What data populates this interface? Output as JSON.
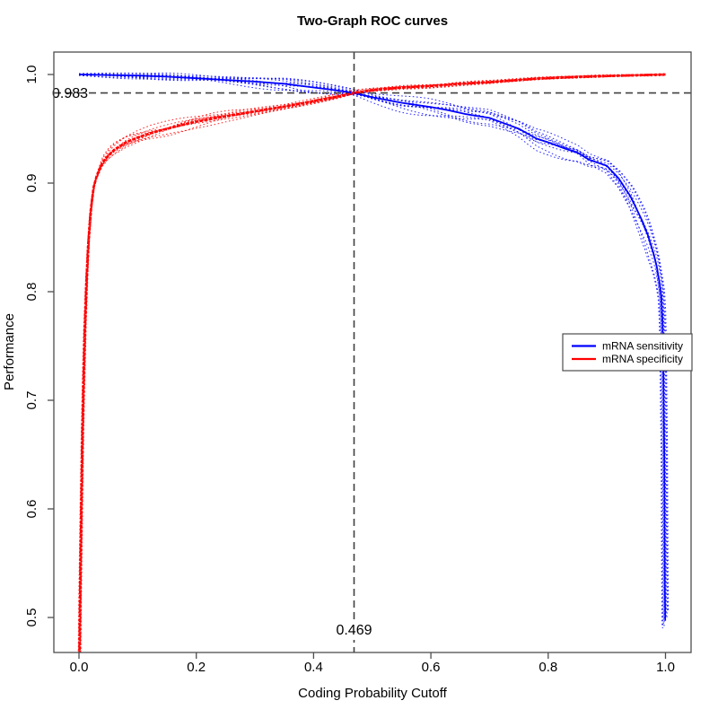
{
  "page": {
    "background": "#ffffff"
  },
  "chart_data": {
    "type": "line",
    "title": "Two-Graph ROC curves",
    "xlabel": "Coding Probability Cutoff",
    "ylabel": "Performance",
    "xlim": [
      -0.04,
      1.04
    ],
    "ylim": [
      0.468,
      1.02
    ],
    "grid": false,
    "legend_position": "right-middle",
    "x_ticks": {
      "values": [
        0.0,
        0.2,
        0.4,
        0.6,
        0.8,
        1.0
      ],
      "labels": [
        "0.0",
        "0.2",
        "0.4",
        "0.6",
        "0.8",
        "1.0"
      ]
    },
    "y_ticks": {
      "values": [
        0.5,
        0.6,
        0.7,
        0.8,
        0.9,
        1.0
      ],
      "labels": [
        "0.5",
        "0.6",
        "0.7",
        "0.8",
        "0.9",
        "1.0"
      ]
    },
    "series": [
      {
        "name": "mRNA sensitivity",
        "color": "#0000FF",
        "style": "solid",
        "points": [
          [
            0.0,
            1.0
          ],
          [
            0.05,
            0.9995
          ],
          [
            0.1,
            0.999
          ],
          [
            0.15,
            0.998
          ],
          [
            0.2,
            0.9965
          ],
          [
            0.25,
            0.995
          ],
          [
            0.3,
            0.9935
          ],
          [
            0.35,
            0.9915
          ],
          [
            0.4,
            0.988
          ],
          [
            0.43,
            0.986
          ],
          [
            0.469,
            0.983
          ],
          [
            0.5,
            0.979
          ],
          [
            0.55,
            0.974
          ],
          [
            0.6,
            0.97
          ],
          [
            0.63,
            0.967
          ],
          [
            0.66,
            0.9635
          ],
          [
            0.7,
            0.96
          ],
          [
            0.72,
            0.956
          ],
          [
            0.75,
            0.95
          ],
          [
            0.78,
            0.941
          ],
          [
            0.8,
            0.9375
          ],
          [
            0.83,
            0.9315
          ],
          [
            0.85,
            0.928
          ],
          [
            0.87,
            0.9215
          ],
          [
            0.9,
            0.916
          ],
          [
            0.92,
            0.9045
          ],
          [
            0.94,
            0.888
          ],
          [
            0.95,
            0.877
          ],
          [
            0.96,
            0.8655
          ],
          [
            0.97,
            0.852
          ],
          [
            0.98,
            0.8345
          ],
          [
            0.985,
            0.8235
          ],
          [
            0.99,
            0.8075
          ],
          [
            0.993,
            0.795
          ],
          [
            0.995,
            0.772
          ],
          [
            0.996,
            0.7435
          ],
          [
            0.997,
            0.7
          ],
          [
            0.998,
            0.645
          ],
          [
            0.9985,
            0.59
          ],
          [
            0.999,
            0.53
          ],
          [
            0.9995,
            0.497
          ]
        ]
      },
      {
        "name": "mRNA specificity",
        "color": "#FF0000",
        "style": "solid",
        "points": [
          [
            0.0005,
            0.44
          ],
          [
            0.002,
            0.52
          ],
          [
            0.004,
            0.6
          ],
          [
            0.006,
            0.67
          ],
          [
            0.008,
            0.72
          ],
          [
            0.01,
            0.765
          ],
          [
            0.013,
            0.81
          ],
          [
            0.016,
            0.845
          ],
          [
            0.02,
            0.875
          ],
          [
            0.025,
            0.896
          ],
          [
            0.03,
            0.906
          ],
          [
            0.04,
            0.9185
          ],
          [
            0.05,
            0.9255
          ],
          [
            0.06,
            0.9305
          ],
          [
            0.08,
            0.9375
          ],
          [
            0.1,
            0.942
          ],
          [
            0.125,
            0.9465
          ],
          [
            0.15,
            0.95
          ],
          [
            0.175,
            0.9535
          ],
          [
            0.2,
            0.9565
          ],
          [
            0.25,
            0.9615
          ],
          [
            0.3,
            0.966
          ],
          [
            0.35,
            0.9705
          ],
          [
            0.4,
            0.9755
          ],
          [
            0.44,
            0.9795
          ],
          [
            0.469,
            0.983
          ],
          [
            0.5,
            0.9855
          ],
          [
            0.55,
            0.988
          ],
          [
            0.6,
            0.9895
          ],
          [
            0.65,
            0.9915
          ],
          [
            0.7,
            0.993
          ],
          [
            0.75,
            0.995
          ],
          [
            0.78,
            0.9962
          ],
          [
            0.82,
            0.9972
          ],
          [
            0.86,
            0.998
          ],
          [
            0.9,
            0.9986
          ],
          [
            0.95,
            0.9993
          ],
          [
            1.0,
            1.0
          ]
        ]
      }
    ],
    "replicates": {
      "per_series": 10,
      "style": "dotted"
    },
    "annotations": {
      "threshold_x": {
        "value": 0.469,
        "label": "0.469",
        "line_style": "dashed",
        "color": "#404040"
      },
      "threshold_y": {
        "value": 0.983,
        "label": "0.983",
        "line_style": "dashed",
        "color": "#404040"
      }
    }
  },
  "legend": {
    "items": [
      {
        "label": "mRNA sensitivity",
        "color": "#0000FF"
      },
      {
        "label": "mRNA specificity",
        "color": "#FF0000"
      }
    ]
  },
  "frame": {
    "color": "#4d4d4d"
  }
}
